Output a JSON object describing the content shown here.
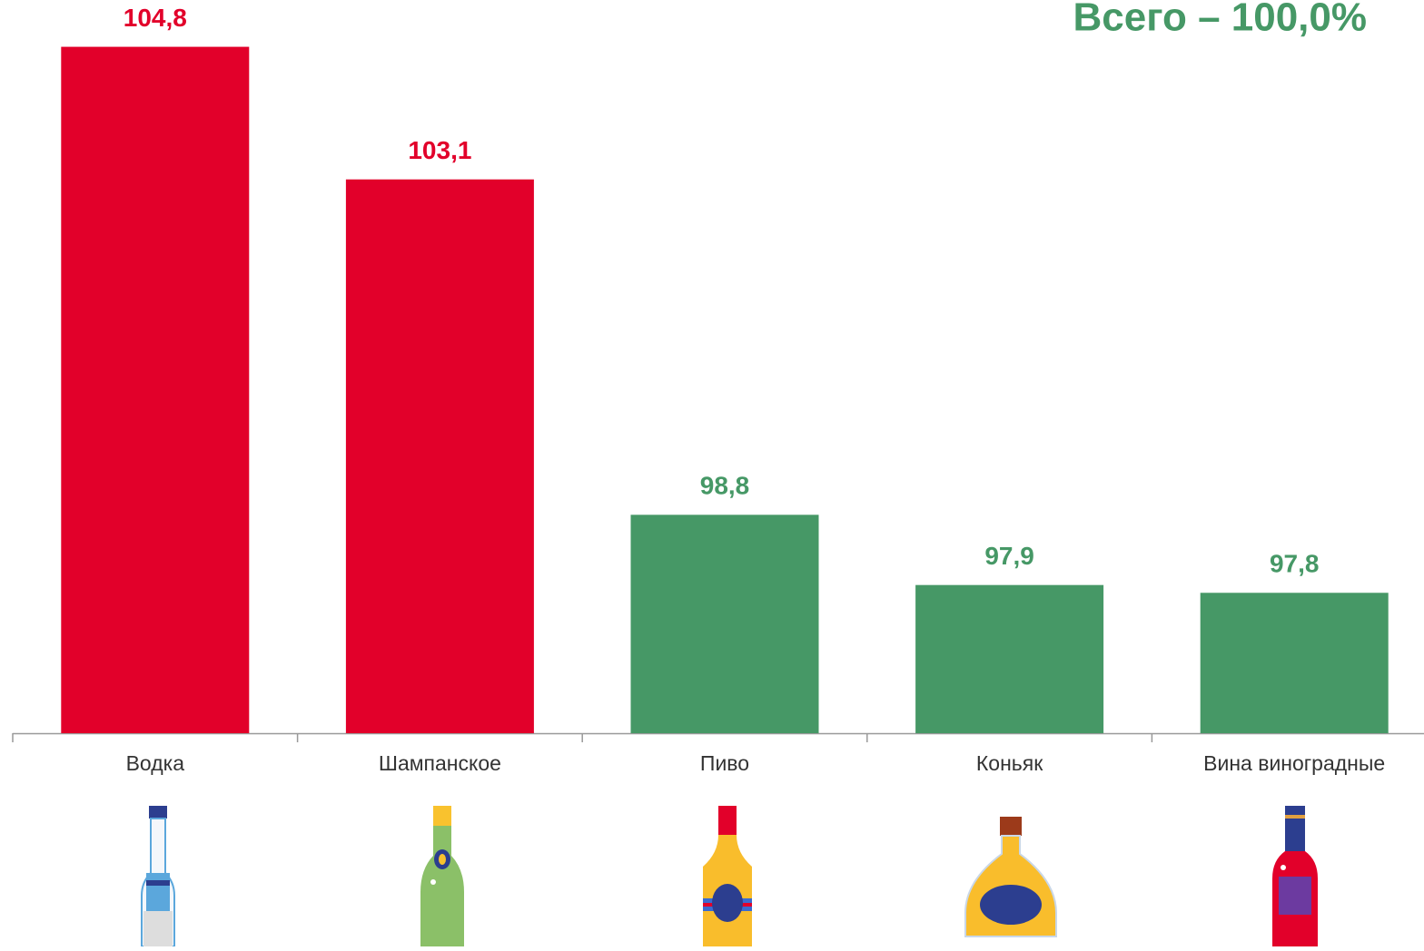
{
  "chart_data": {
    "type": "bar",
    "title": "Всего – 100,0%",
    "categories": [
      "Водка",
      "Шампанское",
      "Пиво",
      "Коньяк",
      "Вина виноградные"
    ],
    "values": [
      104.8,
      103.1,
      98.8,
      97.9,
      97.8
    ],
    "value_labels": [
      "104,8",
      "103,1",
      "98,8",
      "97,9",
      "97,8"
    ],
    "colors": [
      "#e2002a",
      "#e2002a",
      "#469866",
      "#469866",
      "#469866"
    ],
    "title_color": "#469866",
    "ylim": [
      96,
      105.4
    ]
  }
}
